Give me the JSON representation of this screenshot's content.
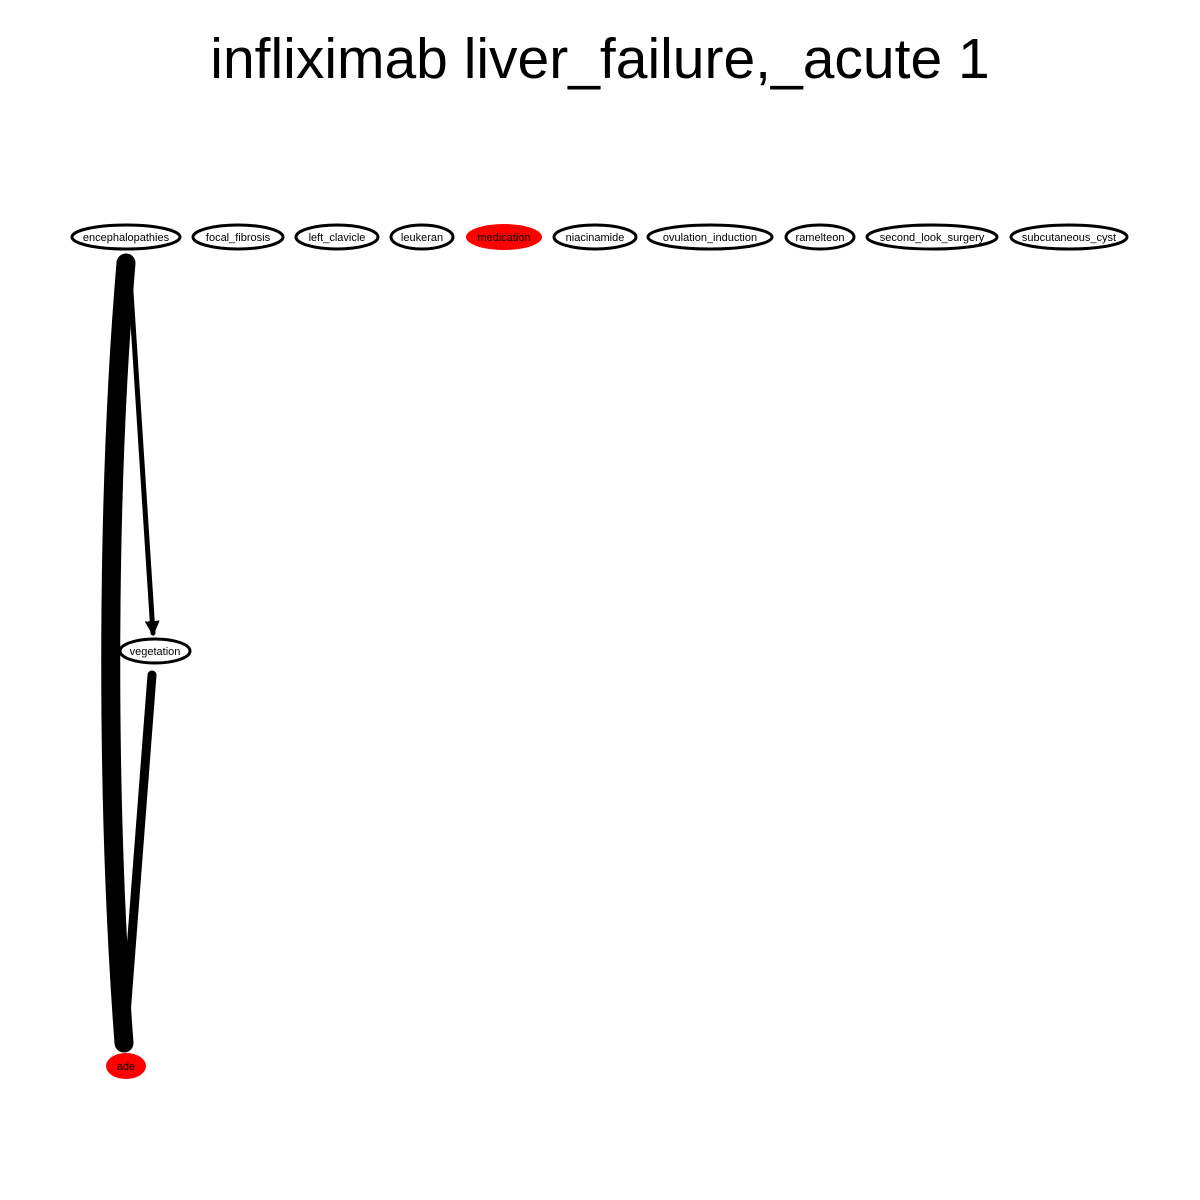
{
  "title": "infliximab liver_failure,_acute 1",
  "colors": {
    "highlight": "#ff0000",
    "node_fill": "#ffffff",
    "stroke": "#000000"
  },
  "nodes": [
    {
      "id": "encephalopathies",
      "label": "encephalopathies",
      "highlighted": false
    },
    {
      "id": "focal_fibrosis",
      "label": "focal_fibrosis",
      "highlighted": false
    },
    {
      "id": "left_clavicle",
      "label": "left_clavicle",
      "highlighted": false
    },
    {
      "id": "leukeran",
      "label": "leukeran",
      "highlighted": false
    },
    {
      "id": "medication",
      "label": "medication",
      "highlighted": true
    },
    {
      "id": "niacinamide",
      "label": "niacinamide",
      "highlighted": false
    },
    {
      "id": "ovulation_induction",
      "label": "ovulation_induction",
      "highlighted": false
    },
    {
      "id": "ramelteon",
      "label": "ramelteon",
      "highlighted": false
    },
    {
      "id": "second_look_surgery",
      "label": "second_look_surgery",
      "highlighted": false
    },
    {
      "id": "subcutaneous_cyst",
      "label": "subcutaneous_cyst",
      "highlighted": false
    },
    {
      "id": "vegetation",
      "label": "vegetation",
      "highlighted": false
    },
    {
      "id": "ade",
      "label": "ade",
      "highlighted": true
    }
  ],
  "edges": [
    {
      "from": "encephalopathies",
      "to": "ade",
      "weight": "heavy"
    },
    {
      "from": "encephalopathies",
      "to": "vegetation",
      "weight": "light"
    },
    {
      "from": "vegetation",
      "to": "ade",
      "weight": "medium"
    }
  ]
}
